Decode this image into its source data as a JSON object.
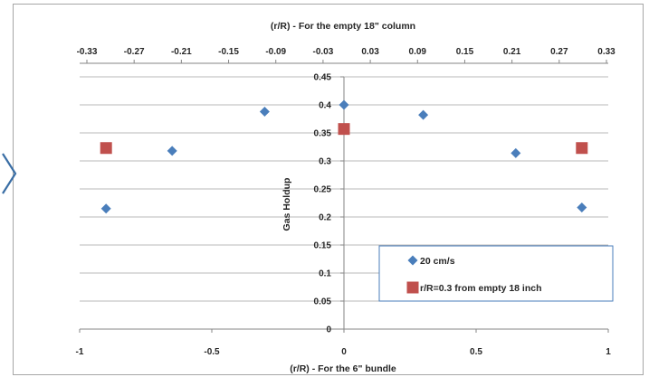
{
  "chart_data": {
    "type": "scatter",
    "title": "",
    "top_axis": {
      "label": "(r/R) -  For the empty 18\" column",
      "ticks": [
        "-0.33",
        "-0.27",
        "-0.21",
        "-0.15",
        "-0.09",
        "-0.03",
        "0.03",
        "0.09",
        "0.15",
        "0.21",
        "0.27",
        "0.33"
      ]
    },
    "xlabel": "(r/R) - For the 6\" bundle",
    "xlim": [
      -1,
      1
    ],
    "xticks": [
      "-1",
      "-0.5",
      "0",
      "0.5",
      "1"
    ],
    "ylabel": "Gas Holdup",
    "ylim": [
      0,
      0.45
    ],
    "yticks": [
      "0",
      "0.05",
      "0.1",
      "0.15",
      "0.2",
      "0.25",
      "0.3",
      "0.35",
      "0.4",
      "0.45"
    ],
    "grid": true,
    "legend_position": "bottom-right",
    "series": [
      {
        "name": "20 cm/s",
        "marker": "diamond",
        "color": "#4a7ebb",
        "points": [
          {
            "x": -0.9,
            "y": 0.215
          },
          {
            "x": -0.65,
            "y": 0.318
          },
          {
            "x": -0.3,
            "y": 0.388
          },
          {
            "x": 0.0,
            "y": 0.4
          },
          {
            "x": 0.3,
            "y": 0.382
          },
          {
            "x": 0.65,
            "y": 0.314
          },
          {
            "x": 0.9,
            "y": 0.217
          }
        ]
      },
      {
        "name": "r/R=0.3 from empty 18 inch",
        "marker": "square",
        "color": "#c0504d",
        "points": [
          {
            "x": -0.9,
            "y": 0.323
          },
          {
            "x": 0.0,
            "y": 0.357
          },
          {
            "x": 0.9,
            "y": 0.323
          }
        ]
      }
    ]
  },
  "decor": {
    "left_arrow_icon": "chevron-right-icon",
    "arrow_color": "#3a6ea5"
  }
}
